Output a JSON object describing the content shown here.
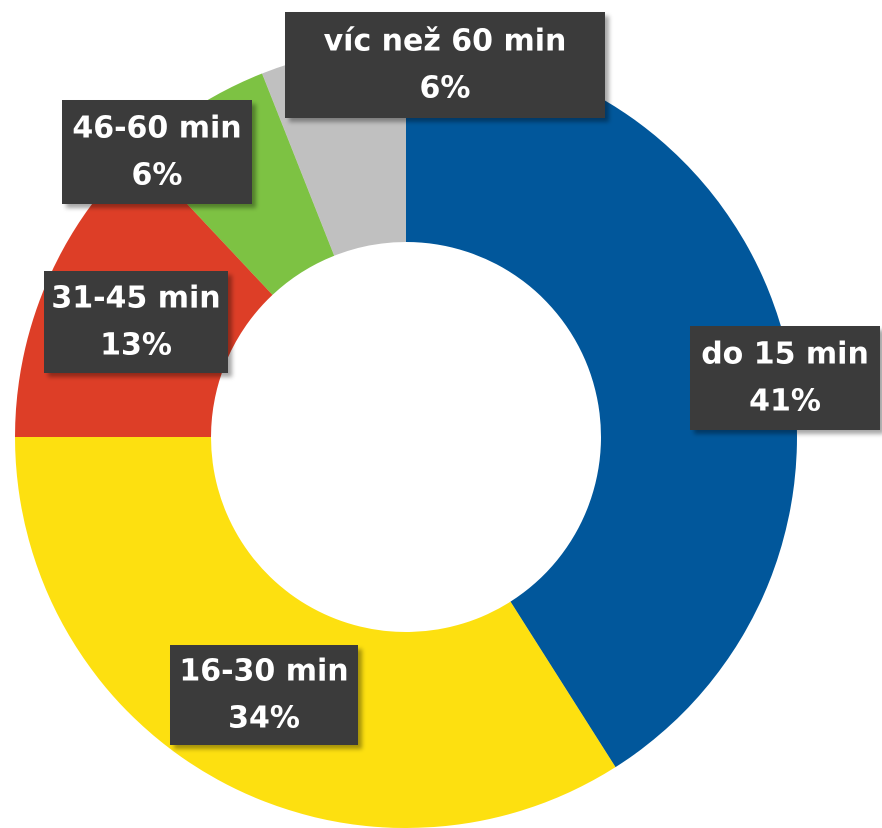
{
  "chart_data": {
    "type": "donut",
    "categories": [
      "do 15 min",
      "16-30 min",
      "31-45 min",
      "46-60 min",
      "víc než 60 min"
    ],
    "values": [
      41,
      34,
      13,
      6,
      6
    ],
    "value_labels": [
      "41%",
      "34%",
      "13%",
      "6%",
      "6%"
    ],
    "colors": [
      "#01579b",
      "#fde010",
      "#dd3e27",
      "#7dc243",
      "#c0c0c0"
    ]
  }
}
